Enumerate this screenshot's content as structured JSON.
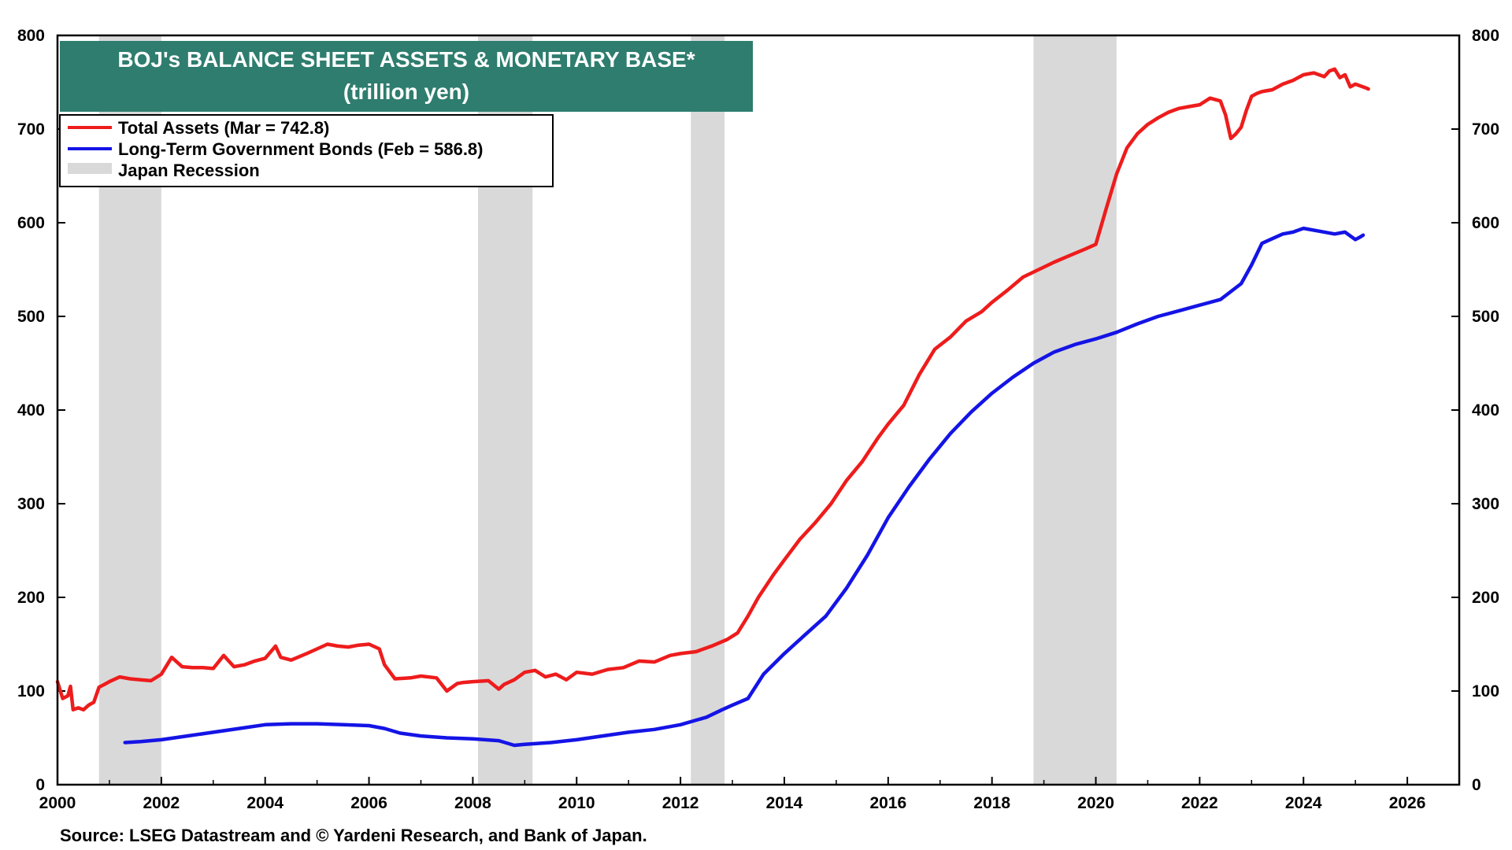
{
  "chart_data": {
    "type": "line",
    "title": "BOJ's BALANCE SHEET ASSETS & MONETARY BASE*",
    "subtitle": "(trillion yen)",
    "xlabel": "",
    "ylabel": "",
    "xlim": [
      2000,
      2027
    ],
    "ylim": [
      0,
      800
    ],
    "x_ticks": [
      "2000",
      "2002",
      "2004",
      "2006",
      "2008",
      "2010",
      "2012",
      "2014",
      "2016",
      "2018",
      "2020",
      "2022",
      "2024",
      "2026"
    ],
    "y_ticks": [
      "0",
      "100",
      "200",
      "300",
      "400",
      "500",
      "600",
      "700",
      "800"
    ],
    "legend": [
      "Total Assets (Mar = 742.8)",
      "Long-Term Government Bonds (Feb = 586.8)",
      "Japan Recession"
    ],
    "recessions": [
      [
        2000.8,
        2002.0
      ],
      [
        2008.1,
        2009.15
      ],
      [
        2012.2,
        2012.85
      ],
      [
        2018.8,
        2020.4
      ]
    ],
    "series": [
      {
        "name": "Total Assets (Mar = 742.8)",
        "color": "#ee1c1c",
        "x": [
          2000.0,
          2000.1,
          2000.2,
          2000.25,
          2000.3,
          2000.4,
          2000.5,
          2000.6,
          2000.7,
          2000.8,
          2000.9,
          2001.0,
          2001.2,
          2001.4,
          2001.6,
          2001.8,
          2002.0,
          2002.2,
          2002.4,
          2002.6,
          2002.8,
          2003.0,
          2003.2,
          2003.4,
          2003.6,
          2003.8,
          2004.0,
          2004.2,
          2004.3,
          2004.5,
          2004.8,
          2005.0,
          2005.2,
          2005.4,
          2005.6,
          2005.8,
          2006.0,
          2006.2,
          2006.3,
          2006.5,
          2006.8,
          2007.0,
          2007.3,
          2007.5,
          2007.7,
          2007.8,
          2008.0,
          2008.3,
          2008.5,
          2008.6,
          2008.8,
          2009.0,
          2009.2,
          2009.4,
          2009.6,
          2009.8,
          2010.0,
          2010.3,
          2010.6,
          2010.9,
          2011.2,
          2011.5,
          2011.8,
          2012.0,
          2012.3,
          2012.6,
          2012.9,
          2013.1,
          2013.3,
          2013.5,
          2013.8,
          2014.0,
          2014.3,
          2014.6,
          2014.9,
          2015.2,
          2015.5,
          2015.8,
          2016.0,
          2016.3,
          2016.6,
          2016.9,
          2017.2,
          2017.5,
          2017.8,
          2018.0,
          2018.3,
          2018.6,
          2018.9,
          2019.2,
          2019.5,
          2019.8,
          2020.0,
          2020.2,
          2020.4,
          2020.6,
          2020.8,
          2021.0,
          2021.2,
          2021.4,
          2021.6,
          2021.8,
          2022.0,
          2022.2,
          2022.4,
          2022.5,
          2022.6,
          2022.7,
          2022.8,
          2022.9,
          2023.0,
          2023.1,
          2023.2,
          2023.4,
          2023.6,
          2023.8,
          2024.0,
          2024.2,
          2024.4,
          2024.5,
          2024.6,
          2024.7,
          2024.8,
          2024.9,
          2025.0,
          2025.1,
          2025.2,
          2025.25
        ],
        "values": [
          110,
          92,
          95,
          105,
          80,
          82,
          80,
          85,
          88,
          104,
          107,
          110,
          115,
          113,
          112,
          111,
          118,
          136,
          126,
          125,
          125,
          124,
          138,
          126,
          128,
          132,
          135,
          148,
          136,
          133,
          140,
          145,
          150,
          148,
          147,
          149,
          150,
          145,
          128,
          113,
          114,
          116,
          114,
          100,
          108,
          109,
          110,
          111,
          102,
          107,
          112,
          120,
          122,
          115,
          118,
          112,
          120,
          118,
          123,
          125,
          132,
          131,
          138,
          140,
          142,
          148,
          155,
          162,
          180,
          200,
          225,
          240,
          262,
          280,
          300,
          325,
          345,
          370,
          385,
          405,
          438,
          465,
          478,
          495,
          505,
          515,
          528,
          542,
          550,
          558,
          565,
          572,
          577,
          615,
          652,
          680,
          695,
          705,
          712,
          718,
          722,
          724,
          726,
          733,
          730,
          715,
          690,
          695,
          702,
          720,
          735,
          738,
          740,
          742,
          748,
          752,
          758,
          760,
          756,
          762,
          764,
          755,
          758,
          745,
          748,
          746,
          744,
          742.8
        ]
      },
      {
        "name": "Long-Term Government Bonds (Feb = 586.8)",
        "color": "#1414e6",
        "x": [
          2001.3,
          2001.6,
          2002.0,
          2002.5,
          2003.0,
          2003.5,
          2004.0,
          2004.5,
          2005.0,
          2005.5,
          2006.0,
          2006.3,
          2006.6,
          2007.0,
          2007.5,
          2008.0,
          2008.5,
          2008.8,
          2009.0,
          2009.5,
          2010.0,
          2010.5,
          2011.0,
          2011.5,
          2012.0,
          2012.5,
          2012.8,
          2013.0,
          2013.3,
          2013.6,
          2014.0,
          2014.4,
          2014.8,
          2015.2,
          2015.6,
          2016.0,
          2016.4,
          2016.8,
          2017.2,
          2017.6,
          2018.0,
          2018.4,
          2018.8,
          2019.2,
          2019.6,
          2020.0,
          2020.4,
          2020.8,
          2021.2,
          2021.6,
          2022.0,
          2022.4,
          2022.8,
          2023.0,
          2023.2,
          2023.4,
          2023.6,
          2023.8,
          2024.0,
          2024.3,
          2024.6,
          2024.8,
          2025.0,
          2025.1,
          2025.15
        ],
        "values": [
          45,
          46,
          48,
          52,
          56,
          60,
          64,
          65,
          65,
          64,
          63,
          60,
          55,
          52,
          50,
          49,
          47,
          42,
          43,
          45,
          48,
          52,
          56,
          59,
          64,
          72,
          80,
          85,
          92,
          118,
          140,
          160,
          180,
          210,
          245,
          285,
          318,
          348,
          375,
          398,
          418,
          435,
          450,
          462,
          470,
          476,
          483,
          492,
          500,
          506,
          512,
          518,
          535,
          555,
          578,
          583,
          588,
          590,
          594,
          591,
          588,
          590,
          582,
          585,
          586.8
        ]
      }
    ],
    "source": "Source: LSEG Datastream and © Yardeni Research, and Bank of Japan."
  }
}
